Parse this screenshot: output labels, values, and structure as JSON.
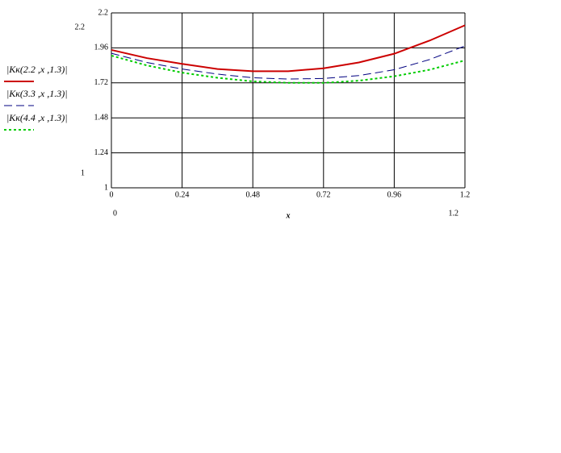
{
  "chart_data": {
    "type": "line",
    "x_label": "x",
    "x": [
      0,
      0.12,
      0.24,
      0.36,
      0.48,
      0.6,
      0.72,
      0.84,
      0.96,
      1.08,
      1.2
    ],
    "series": [
      {
        "name": "|Kк(2.2 ,x ,1.3)|",
        "color": "#cc0000",
        "dash": "solid",
        "values": [
          1.946,
          1.89,
          1.85,
          1.815,
          1.8,
          1.8,
          1.82,
          1.86,
          1.92,
          2.01,
          2.115
        ]
      },
      {
        "name": "|Kк(3.3 ,x ,1.3)|",
        "color": "#000080",
        "dash": "dashed",
        "values": [
          1.923,
          1.86,
          1.815,
          1.78,
          1.755,
          1.746,
          1.75,
          1.77,
          1.81,
          1.88,
          1.973
        ]
      },
      {
        "name": "|Kк(4.4 ,x ,1.3)|",
        "color": "#00cc00",
        "dash": "dotted",
        "values": [
          1.907,
          1.84,
          1.79,
          1.755,
          1.73,
          1.72,
          1.72,
          1.735,
          1.765,
          1.81,
          1.874
        ]
      }
    ],
    "xlim": [
      0,
      1.2
    ],
    "ylim": [
      1,
      2.2
    ],
    "xticks": [
      0,
      0.24,
      0.48,
      0.72,
      0.96,
      1.2
    ],
    "yticks": [
      1,
      1.24,
      1.48,
      1.72,
      1.96,
      2.2
    ],
    "grid": true
  }
}
